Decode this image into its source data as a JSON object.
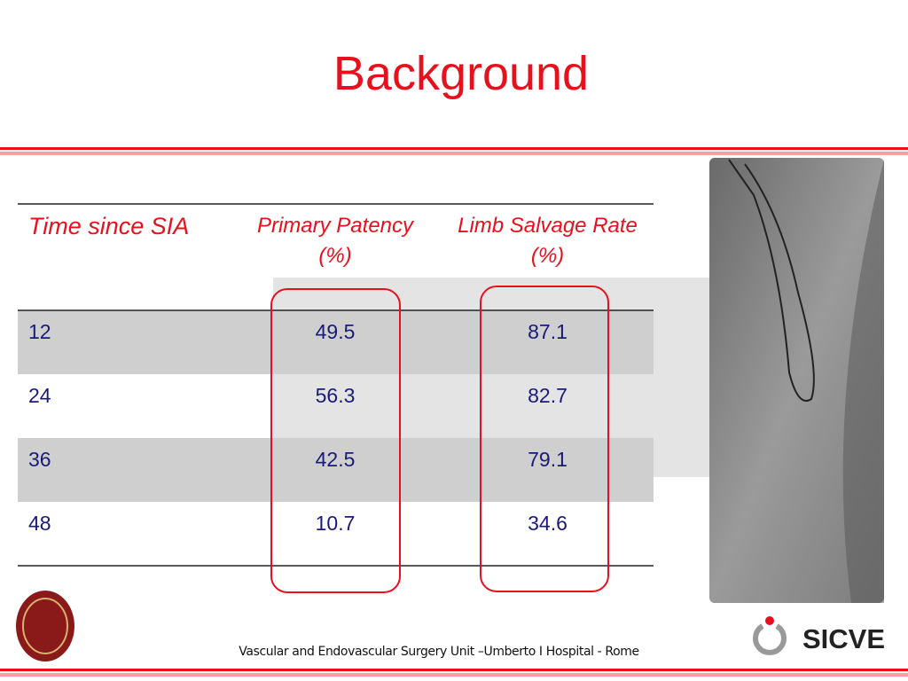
{
  "header": {
    "title": "Background"
  },
  "table": {
    "columns": [
      "Time since SIA",
      "Primary Patency (%)",
      "Limb Salvage Rate (%)"
    ],
    "rows": [
      [
        "12",
        "49.5",
        "87.1"
      ],
      [
        "24",
        "56.3",
        "82.7"
      ],
      [
        "36",
        "42.5",
        "79.1"
      ],
      [
        "48",
        "10.7",
        "34.6"
      ]
    ]
  },
  "footer": {
    "text": "Vascular and Endovascular Surgery Unit –Umberto I Hospital -  Rome",
    "logo": "SICVE"
  }
}
